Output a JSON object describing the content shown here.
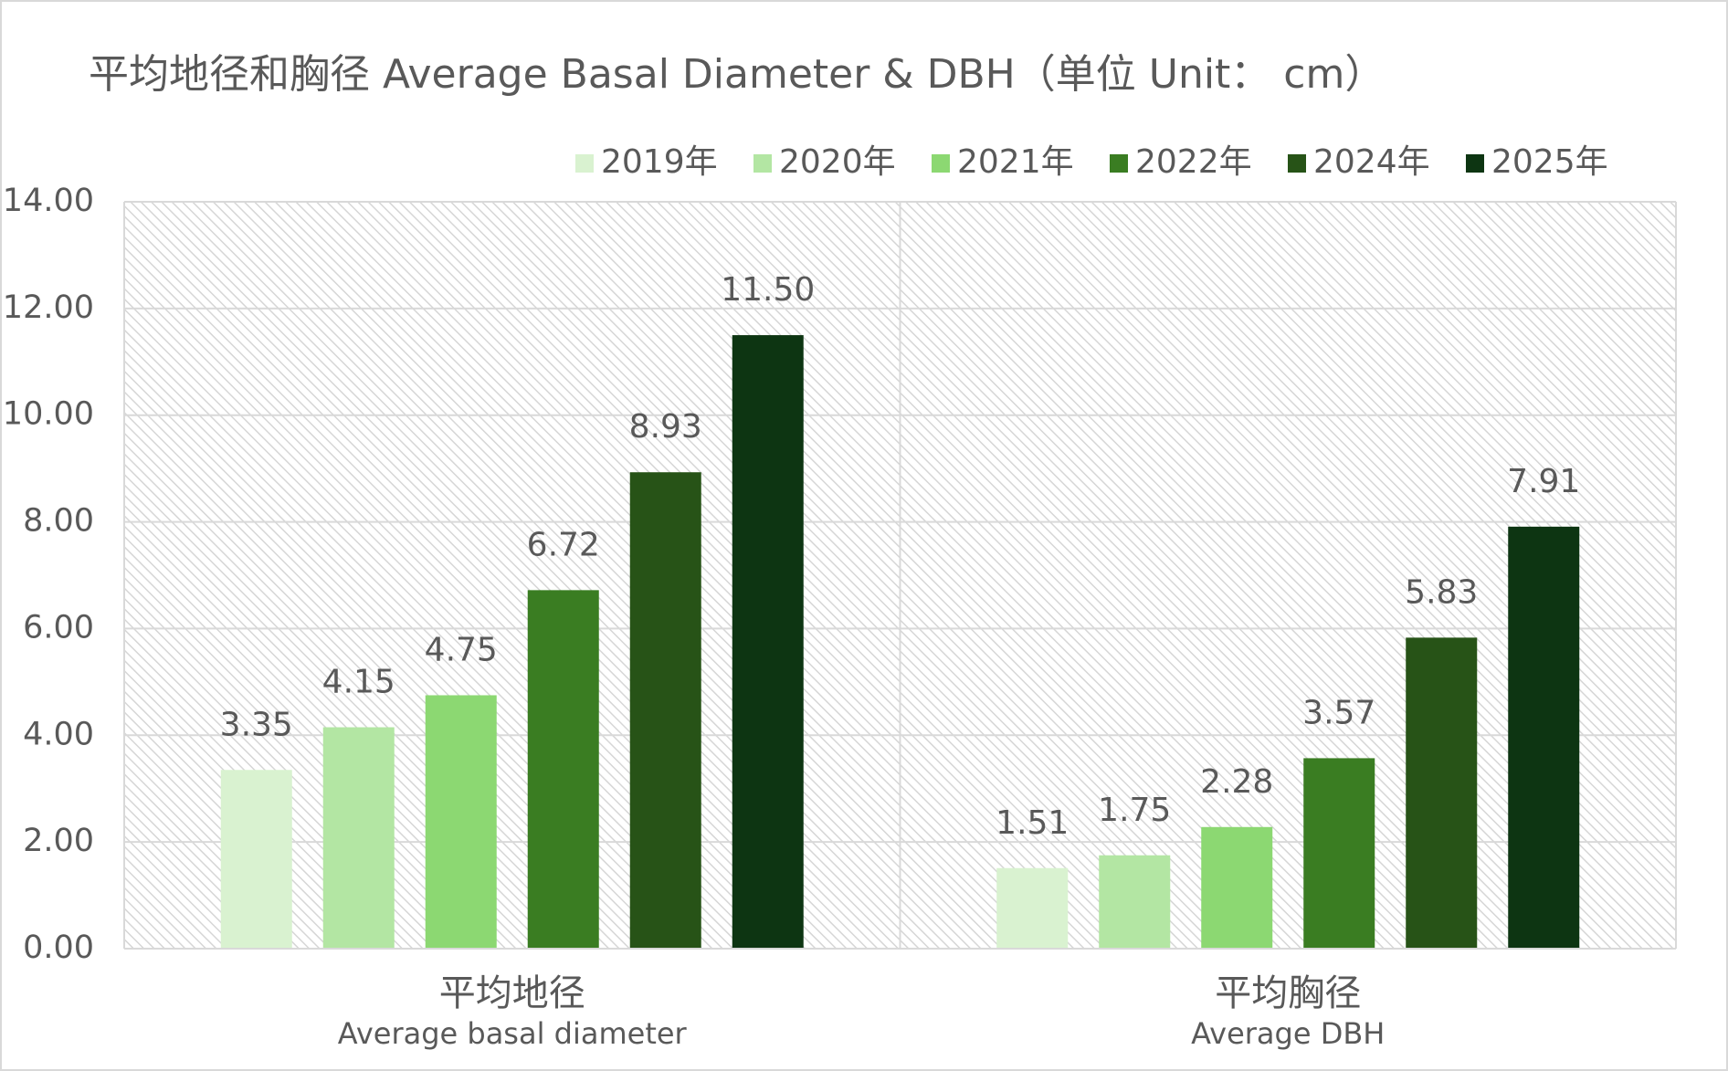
{
  "chart_data": {
    "type": "bar",
    "title": "平均地径和胸径 Average Basal Diameter & DBH（单位 Unit： cm）",
    "categories": [
      [
        "平均地径",
        "Average basal diameter"
      ],
      [
        "平均胸径",
        "Average DBH"
      ]
    ],
    "series": [
      {
        "name": "2019年",
        "color": "#d9f2d0",
        "values": [
          3.35,
          1.51
        ],
        "value_labels": [
          "3.35",
          "1.51"
        ]
      },
      {
        "name": "2020年",
        "color": "#b3e6a3",
        "values": [
          4.15,
          1.75
        ],
        "value_labels": [
          "4.15",
          "1.75"
        ]
      },
      {
        "name": "2021年",
        "color": "#8cd872",
        "values": [
          4.75,
          2.28
        ],
        "value_labels": [
          "4.75",
          "2.28"
        ]
      },
      {
        "name": "2022年",
        "color": "#3a7d22",
        "values": [
          6.72,
          3.57
        ],
        "value_labels": [
          "6.72",
          "3.57"
        ]
      },
      {
        "name": "2024年",
        "color": "#275317",
        "values": [
          8.93,
          5.83
        ],
        "value_labels": [
          "8.93",
          "5.83"
        ]
      },
      {
        "name": "2025年",
        "color": "#0d3512",
        "values": [
          11.5,
          7.91
        ],
        "value_labels": [
          "11.50",
          "7.91"
        ]
      }
    ],
    "ylim": [
      0,
      14
    ],
    "yticks": [
      {
        "value": 0,
        "label": "0.00"
      },
      {
        "value": 2,
        "label": "2.00"
      },
      {
        "value": 4,
        "label": "4.00"
      },
      {
        "value": 6,
        "label": "6.00"
      },
      {
        "value": 8,
        "label": "8.00"
      },
      {
        "value": 10,
        "label": "10.00"
      },
      {
        "value": 12,
        "label": "12.00"
      },
      {
        "value": 14,
        "label": "14.00"
      }
    ],
    "grid": true,
    "legend": "top"
  }
}
